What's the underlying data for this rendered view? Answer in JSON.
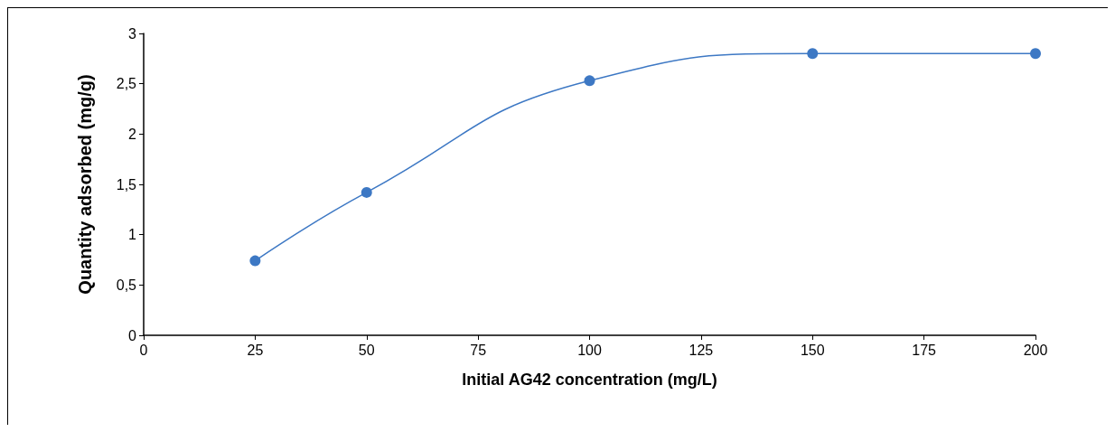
{
  "chart_data": {
    "type": "line",
    "xlabel": "Initial AG42 concentration (mg/L)",
    "ylabel": "Quantity adsorbed (mg/g)",
    "x": [
      25,
      50,
      100,
      150,
      200
    ],
    "series": [
      {
        "color": "#3d78c4",
        "values": [
          0.74,
          1.42,
          2.53,
          2.8,
          2.8
        ]
      }
    ],
    "xlim": [
      0,
      200
    ],
    "xticks": [
      0,
      25,
      50,
      75,
      100,
      125,
      150,
      175,
      200
    ],
    "ylim": [
      0,
      3
    ],
    "yticks": [
      0,
      {
        "value": 0.5,
        "label": "0,5"
      },
      1,
      {
        "value": 1.5,
        "label": "1,5"
      },
      2,
      {
        "value": 2.5,
        "label": "2,5"
      },
      3
    ],
    "grid": false,
    "marker": "circle",
    "line_style": "solid"
  }
}
